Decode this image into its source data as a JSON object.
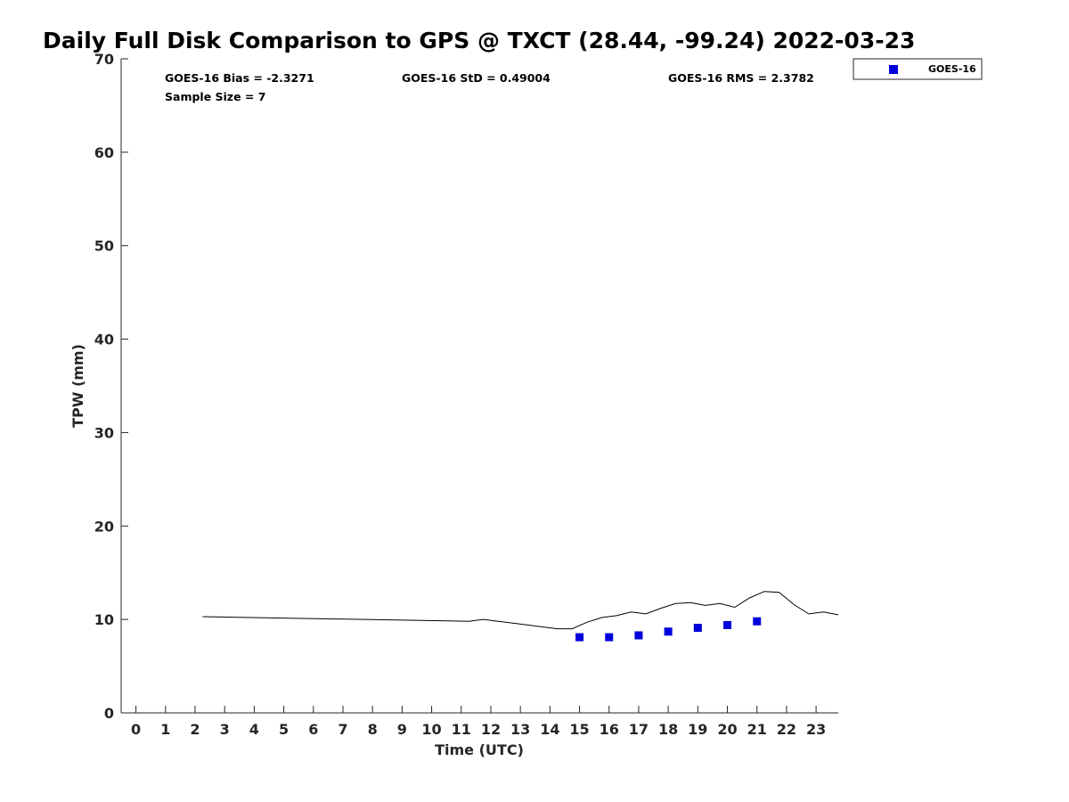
{
  "chart_data": {
    "type": "scatter",
    "title": "Daily Full Disk Comparison to GPS @ TXCT (28.44, -99.24) 2022-03-23",
    "xlabel": "Time (UTC)",
    "ylabel": "TPW (mm)",
    "xlim": [
      -0.5,
      23.75
    ],
    "ylim": [
      0,
      70
    ],
    "x_ticks": [
      0,
      1,
      2,
      3,
      4,
      5,
      6,
      7,
      8,
      9,
      10,
      11,
      12,
      13,
      14,
      15,
      16,
      17,
      18,
      19,
      20,
      21,
      22,
      23
    ],
    "y_ticks": [
      0,
      10,
      20,
      30,
      40,
      50,
      60,
      70
    ],
    "grid": false,
    "legend_position": "top-right-outside",
    "stats": {
      "bias": "GOES-16 Bias = -2.3271",
      "std": "GOES-16 StD = 0.49004",
      "rms": "GOES-16 RMS = 2.3782",
      "sample": "Sample Size = 7"
    },
    "series": [
      {
        "name": "GOES-16",
        "kind": "markers",
        "color": "#0000dd",
        "x": [
          15,
          16,
          17,
          18,
          19,
          20,
          21
        ],
        "y": [
          8.1,
          8.1,
          8.3,
          8.7,
          9.1,
          9.4,
          9.8
        ]
      },
      {
        "kind": "line",
        "color": "#000000",
        "x": [
          2.25,
          11.25,
          11.75,
          12.25,
          12.75,
          13.25,
          13.75,
          14.25,
          14.75,
          15.25,
          15.75,
          16.25,
          16.75,
          17.25,
          17.75,
          18.25,
          18.75,
          19.25,
          19.75,
          20.25,
          20.75,
          21.25,
          21.75,
          22.25,
          22.75,
          23.25,
          23.75
        ],
        "y": [
          10.3,
          9.8,
          10.0,
          9.8,
          9.6,
          9.4,
          9.2,
          9.0,
          9.0,
          9.7,
          10.2,
          10.4,
          10.8,
          10.6,
          11.2,
          11.7,
          11.8,
          11.5,
          11.7,
          11.3,
          12.3,
          13.0,
          12.9,
          11.6,
          10.6,
          10.8,
          10.5
        ]
      }
    ]
  }
}
